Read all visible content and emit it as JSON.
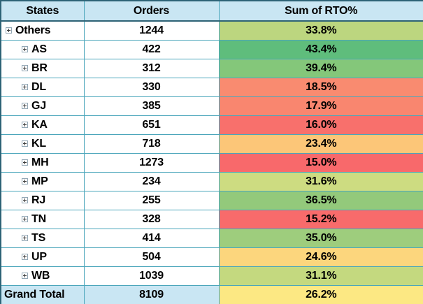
{
  "table": {
    "header": {
      "states": "States",
      "orders": "Orders",
      "rto": "Sum of RTO%"
    },
    "header_bg": "#c9e6f3",
    "inner_border_color": "#4ba6bb",
    "outer_border_color": "#2e6376",
    "expand_icon": "plus-box-expand-icon",
    "rows": [
      {
        "state": "Others",
        "orders": "1244",
        "rto": "33.8%",
        "color": "#bcd67f",
        "indent": 0
      },
      {
        "state": "AS",
        "orders": "422",
        "rto": "43.4%",
        "color": "#5fbd7c",
        "indent": 1
      },
      {
        "state": "BR",
        "orders": "312",
        "rto": "39.4%",
        "color": "#84c77a",
        "indent": 1
      },
      {
        "state": "DL",
        "orders": "330",
        "rto": "18.5%",
        "color": "#f98b70",
        "indent": 1
      },
      {
        "state": "GJ",
        "orders": "385",
        "rto": "17.9%",
        "color": "#f9866f",
        "indent": 1
      },
      {
        "state": "KA",
        "orders": "651",
        "rto": "16.0%",
        "color": "#f8706c",
        "indent": 1
      },
      {
        "state": "KL",
        "orders": "718",
        "rto": "23.4%",
        "color": "#fcc678",
        "indent": 1
      },
      {
        "state": "MH",
        "orders": "1273",
        "rto": "15.0%",
        "color": "#f8696b",
        "indent": 1
      },
      {
        "state": "MP",
        "orders": "234",
        "rto": "31.6%",
        "color": "#cddc81",
        "indent": 1
      },
      {
        "state": "RJ",
        "orders": "255",
        "rto": "36.5%",
        "color": "#93c97b",
        "indent": 1
      },
      {
        "state": "TN",
        "orders": "328",
        "rto": "15.2%",
        "color": "#f86b6b",
        "indent": 1
      },
      {
        "state": "TS",
        "orders": "414",
        "rto": "35.0%",
        "color": "#9ecd7d",
        "indent": 1
      },
      {
        "state": "UP",
        "orders": "504",
        "rto": "24.6%",
        "color": "#fcd67d",
        "indent": 1
      },
      {
        "state": "WB",
        "orders": "1039",
        "rto": "31.1%",
        "color": "#c4d97f",
        "indent": 1
      }
    ],
    "grand_total": {
      "label": "Grand Total",
      "orders": "8109",
      "rto": "26.2%",
      "color": "#fce883"
    }
  }
}
